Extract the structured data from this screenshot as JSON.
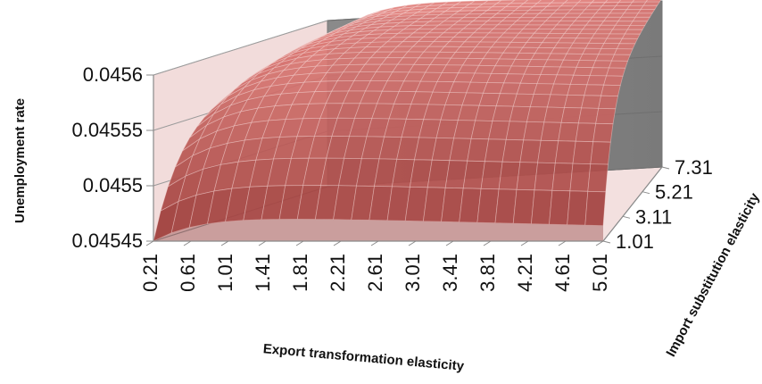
{
  "chart_data": {
    "type": "surface",
    "xlabel": "Export transformation elasticity",
    "ylabel": "Import substitution elasticity",
    "zlabel": "Unemployment rate",
    "x_ticks": [
      "0.21",
      "0.61",
      "1.01",
      "1.41",
      "1.81",
      "2.21",
      "2.61",
      "3.01",
      "3.41",
      "3.81",
      "4.21",
      "4.61",
      "5.01"
    ],
    "y_ticks": [
      "1.01",
      "3.11",
      "5.21",
      "7.31"
    ],
    "z_ticks": [
      "0.04545",
      "0.0455",
      "0.04555",
      "0.0456"
    ],
    "x_range": [
      0.21,
      5.01
    ],
    "y_range": [
      1.01,
      7.31
    ],
    "zlim": [
      0.04545,
      0.0456
    ],
    "surface_color": "#c0504d",
    "back_wall_color": "#808080",
    "side_wall_color": "#f2dcdb",
    "grid": true,
    "surface_samples": [
      {
        "x": 0.21,
        "y": 1.01,
        "z": 0.04545
      },
      {
        "x": 0.21,
        "y": 2.0,
        "z": 0.04551
      },
      {
        "x": 0.21,
        "y": 4.0,
        "z": 0.04554
      },
      {
        "x": 0.21,
        "y": 7.31,
        "z": 0.045555
      },
      {
        "x": 1.01,
        "y": 1.01,
        "z": 0.045474
      },
      {
        "x": 1.01,
        "y": 4.0,
        "z": 0.045566
      },
      {
        "x": 1.01,
        "y": 7.31,
        "z": 0.045585
      },
      {
        "x": 2.61,
        "y": 1.01,
        "z": 0.04547
      },
      {
        "x": 2.61,
        "y": 4.0,
        "z": 0.045565
      },
      {
        "x": 2.61,
        "y": 7.31,
        "z": 0.045585
      },
      {
        "x": 5.01,
        "y": 1.01,
        "z": 0.045462
      },
      {
        "x": 5.01,
        "y": 4.0,
        "z": 0.045562
      },
      {
        "x": 5.01,
        "y": 7.31,
        "z": 0.045582
      }
    ]
  }
}
